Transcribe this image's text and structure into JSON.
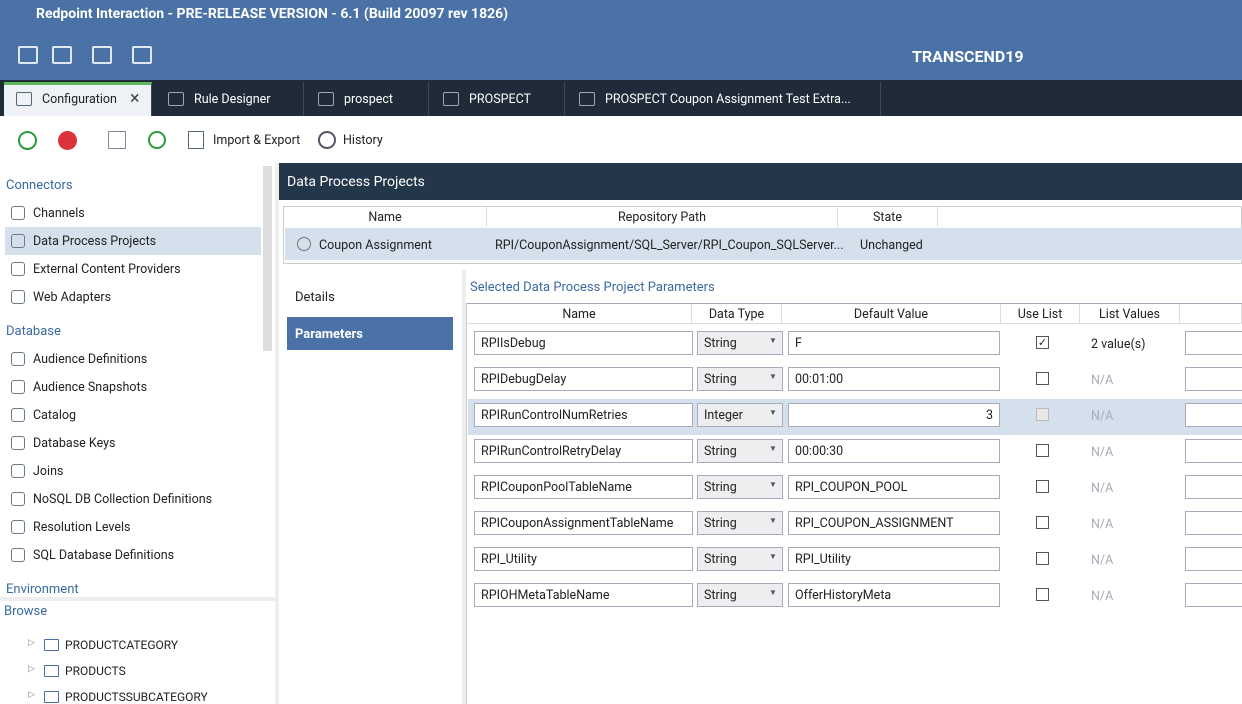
{
  "title_bar": {
    "title": "Redpoint Interaction - PRE-RELEASE VERSION - 6.1 (Build 20097 rev 1826)"
  },
  "header": {
    "brand": "TRANSCEND19"
  },
  "tabs": [
    "Configuration",
    "Rule Designer",
    "prospect",
    "PROSPECT",
    "PROSPECT Coupon Assignment Test Extra..."
  ],
  "toolbar": [
    "Import & Export",
    "History"
  ],
  "sidebar": {
    "sections": [
      {
        "title": "Connectors",
        "items": [
          "Channels",
          "Data Process Projects",
          "External Content Providers",
          "Web Adapters"
        ]
      },
      {
        "title": "Database",
        "items": [
          "Audience Definitions",
          "Audience Snapshots",
          "Catalog",
          "Database Keys",
          "Joins",
          "NoSQL DB Collection Definitions",
          "Resolution Levels",
          "SQL Database Definitions"
        ]
      },
      {
        "title": "Environment",
        "items": []
      }
    ]
  },
  "browse": {
    "title": "Browse",
    "items": [
      "PRODUCTCATEGORY",
      "PRODUCTS",
      "PRODUCTSSUBCATEGORY"
    ]
  },
  "panel": {
    "title": "Data Process Projects"
  },
  "projects": {
    "columns": [
      "Name",
      "Repository Path",
      "State"
    ],
    "rows": [
      [
        "Coupon Assignment",
        "RPI/CouponAssignment/SQL_Server/RPI_Coupon_SQLServer...",
        "Unchanged"
      ]
    ]
  },
  "subnav": [
    "Details",
    "Parameters"
  ],
  "params": {
    "title": "Selected Data Process Project Parameters",
    "columns": [
      "Name",
      "Data Type",
      "Default Value",
      "Use List",
      "List Values"
    ],
    "rows": [
      {
        "name": "RPIIsDebug",
        "type": "String",
        "default": "F",
        "use_list": true,
        "list": "2 value(s)"
      },
      {
        "name": "RPIDebugDelay",
        "type": "String",
        "default": "00:01:00",
        "use_list": false,
        "list": "N/A"
      },
      {
        "name": "RPIRunControlNumRetries",
        "type": "Integer",
        "default": "3",
        "use_list": false,
        "list": "N/A"
      },
      {
        "name": "RPIRunControlRetryDelay",
        "type": "String",
        "default": "00:00:30",
        "use_list": false,
        "list": "N/A"
      },
      {
        "name": "RPICouponPoolTableName",
        "type": "String",
        "default": "RPI_COUPON_POOL",
        "use_list": false,
        "list": "N/A"
      },
      {
        "name": "RPICouponAssignmentTableName",
        "type": "String",
        "default": "RPI_COUPON_ASSIGNMENT",
        "use_list": false,
        "list": "N/A"
      },
      {
        "name": "RPI_Utility",
        "type": "String",
        "default": "RPI_Utility",
        "use_list": false,
        "list": "N/A"
      },
      {
        "name": "RPIOHMetaTableName",
        "type": "String",
        "default": "OfferHistoryMeta",
        "use_list": false,
        "list": "N/A"
      }
    ]
  }
}
